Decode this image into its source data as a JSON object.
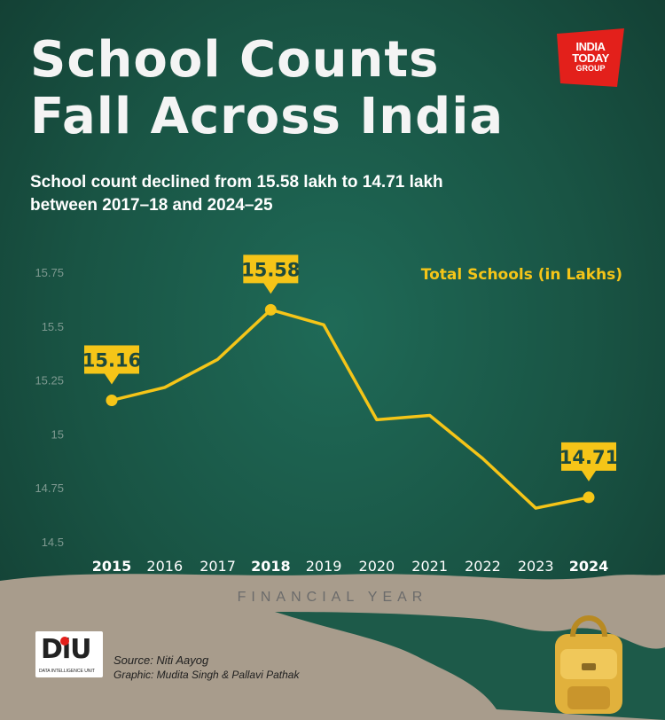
{
  "header": {
    "title_line1": "School Counts",
    "title_line2": "Fall Across India",
    "subtitle": "School count declined from 15.58 lakh to 14.71 lakh between 2017–18 and 2024–25"
  },
  "brand": {
    "line1": "INDIA",
    "line2": "TODAY",
    "line3": "GROUP",
    "color": "#e3201b"
  },
  "chart_data": {
    "type": "line",
    "x": [
      "2015",
      "2016",
      "2017",
      "2018",
      "2019",
      "2020",
      "2021",
      "2022",
      "2023",
      "2024"
    ],
    "series": [
      {
        "name": "Total Schools (in Lakhs)",
        "values": [
          15.16,
          15.22,
          15.35,
          15.58,
          15.51,
          15.07,
          15.09,
          14.89,
          14.66,
          14.71
        ]
      }
    ],
    "ylim": [
      14.5,
      15.75
    ],
    "yticks": [
      "14.5",
      "14.75",
      "15",
      "15.25",
      "15.5",
      "15.75"
    ],
    "xlabel": "FINANCIAL YEAR",
    "ylabel": "",
    "bold_x": [
      "2015",
      "2018",
      "2024"
    ],
    "callouts": [
      {
        "index": 0,
        "label": "15.16"
      },
      {
        "index": 3,
        "label": "15.58"
      },
      {
        "index": 9,
        "label": "14.71"
      }
    ],
    "line_color": "#f5c518",
    "grid": false,
    "legend": "top-right"
  },
  "footer": {
    "logo_text": "DiU",
    "logo_subtext": "DATA INTELLIGENCE UNIT",
    "source": "Source: Niti Aayog",
    "graphic": "Graphic: Mudita Singh & Pallavi Pathak"
  }
}
